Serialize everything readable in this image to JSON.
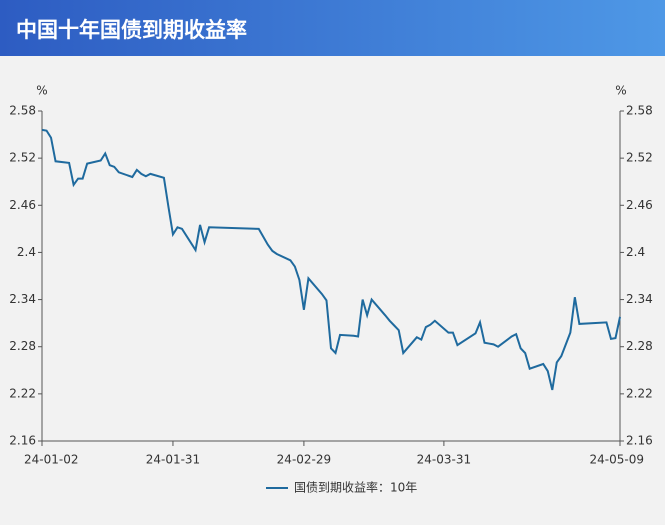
{
  "chart_data": {
    "type": "line",
    "title": "中国十年国债到期收益率",
    "ylabel": "%",
    "y2label": "%",
    "x": [
      "24-01-02",
      "24-01-03",
      "24-01-04",
      "24-01-05",
      "24-01-08",
      "24-01-09",
      "24-01-10",
      "24-01-11",
      "24-01-12",
      "24-01-15",
      "24-01-16",
      "24-01-17",
      "24-01-18",
      "24-01-19",
      "24-01-22",
      "24-01-23",
      "24-01-24",
      "24-01-25",
      "24-01-26",
      "24-01-29",
      "24-01-30",
      "24-01-31",
      "24-02-01",
      "24-02-02",
      "24-02-05",
      "24-02-06",
      "24-02-07",
      "24-02-08",
      "24-02-19",
      "24-02-20",
      "24-02-21",
      "24-02-22",
      "24-02-23",
      "24-02-26",
      "24-02-27",
      "24-02-28",
      "24-02-29",
      "24-03-01",
      "24-03-04",
      "24-03-05",
      "24-03-06",
      "24-03-07",
      "24-03-08",
      "24-03-11",
      "24-03-12",
      "24-03-13",
      "24-03-14",
      "24-03-15",
      "24-03-18",
      "24-03-19",
      "24-03-20",
      "24-03-21",
      "24-03-22",
      "24-03-25",
      "24-03-26",
      "24-03-27",
      "24-03-28",
      "24-03-29",
      "24-04-01",
      "24-04-02",
      "24-04-03",
      "24-04-07",
      "24-04-08",
      "24-04-09",
      "24-04-10",
      "24-04-11",
      "24-04-12",
      "24-04-15",
      "24-04-16",
      "24-04-17",
      "24-04-18",
      "24-04-19",
      "24-04-22",
      "24-04-23",
      "24-04-24",
      "24-04-25",
      "24-04-26",
      "24-04-28",
      "24-04-29",
      "24-04-30",
      "24-05-06",
      "24-05-07",
      "24-05-08",
      "24-05-09"
    ],
    "series": [
      {
        "name": "国债到期收益率：10年",
        "color": "#1f6a9e",
        "values": [
          2.556,
          2.555,
          2.546,
          2.516,
          2.514,
          2.486,
          2.494,
          2.494,
          2.513,
          2.517,
          2.526,
          2.511,
          2.509,
          2.502,
          2.496,
          2.505,
          2.5,
          2.497,
          2.5,
          2.495,
          2.458,
          2.423,
          2.432,
          2.43,
          2.403,
          2.435,
          2.413,
          2.432,
          2.43,
          2.42,
          2.41,
          2.402,
          2.398,
          2.39,
          2.382,
          2.365,
          2.327,
          2.367,
          2.347,
          2.339,
          2.278,
          2.272,
          2.295,
          2.294,
          2.293,
          2.34,
          2.32,
          2.34,
          2.32,
          2.313,
          2.307,
          2.301,
          2.272,
          2.292,
          2.289,
          2.305,
          2.308,
          2.313,
          2.298,
          2.298,
          2.282,
          2.297,
          2.311,
          2.285,
          2.284,
          2.283,
          2.28,
          2.293,
          2.296,
          2.278,
          2.272,
          2.252,
          2.258,
          2.249,
          2.225,
          2.26,
          2.268,
          2.298,
          2.343,
          2.309,
          2.311,
          2.29,
          2.291,
          2.318
        ]
      }
    ],
    "xlim": [
      "24-01-02",
      "24-05-09"
    ],
    "xticks": [
      "24-01-02",
      "24-01-31",
      "24-02-29",
      "24-03-31",
      "24-05-09"
    ],
    "ylim": [
      2.16,
      2.58
    ],
    "yticks": [
      2.58,
      2.52,
      2.46,
      2.4,
      2.34,
      2.28,
      2.22,
      2.16
    ],
    "y2lim": [
      2.16,
      2.58
    ],
    "y2ticks": [
      2.58,
      2.52,
      2.46,
      2.4,
      2.34,
      2.28,
      2.22,
      2.16
    ],
    "grid": false
  }
}
